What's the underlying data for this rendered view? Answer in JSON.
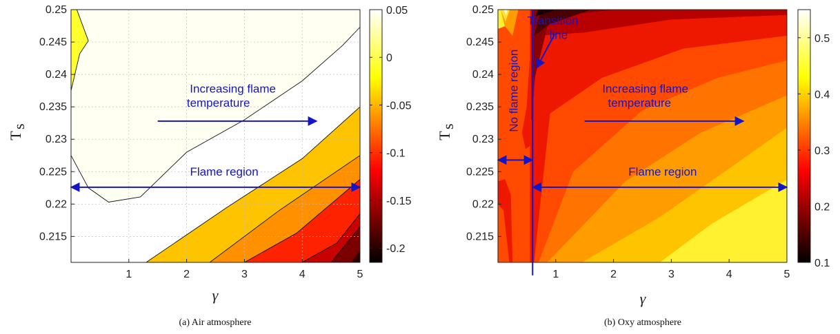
{
  "chart_data": [
    {
      "type": "heatmap",
      "subtype": "filled-contour",
      "caption": "(a) Air atmosphere",
      "xlabel": "γ",
      "ylabel": "T",
      "ylabel_sub": "s",
      "xlim": [
        0,
        5
      ],
      "ylim": [
        0.211,
        0.25
      ],
      "xticks": [
        1,
        2,
        3,
        4,
        5
      ],
      "yticks": [
        0.215,
        0.22,
        0.225,
        0.23,
        0.235,
        0.24,
        0.245,
        0.25
      ],
      "ytick_labels": [
        "0.215",
        "0.22",
        "0.225",
        "0.23",
        "0.235",
        "0.24",
        "0.245",
        "0.25"
      ],
      "grid": true,
      "colorbar": {
        "range": [
          -0.215,
          0.05
        ],
        "ticks": [
          0.05,
          0,
          -0.05,
          -0.1,
          -0.15,
          -0.2
        ],
        "tick_labels": [
          "0.05",
          "0",
          "-0.05",
          "-0.1",
          "-0.15",
          "-0.2"
        ],
        "colormap": "hot"
      },
      "contour_levels": [
        0.0,
        -0.03,
        -0.07,
        -0.11,
        -0.15,
        -0.19
      ],
      "fills": [
        {
          "level": 0.03,
          "color": "#fffff2",
          "polygon": [
            [
              0,
              0.25
            ],
            [
              0.1,
              0.25
            ],
            [
              0.3,
              0.25
            ],
            [
              5,
              0.25
            ],
            [
              5,
              0.2473
            ],
            [
              4.7,
              0.2445
            ],
            [
              4.0,
              0.239
            ],
            [
              3.0,
              0.233
            ],
            [
              2.0,
              0.228
            ],
            [
              1.2,
              0.2211
            ],
            [
              0.65,
              0.2203
            ],
            [
              0.3,
              0.2225
            ],
            [
              0,
              0.2275
            ],
            [
              0,
              0.2375
            ],
            [
              0.15,
              0.2432
            ],
            [
              0.3,
              0.2452
            ],
            [
              0.1,
              0.25
            ]
          ]
        },
        {
          "level": 0.035,
          "color": "#ffff30",
          "polygon": [
            [
              0,
              0.2375
            ],
            [
              0,
              0.25
            ],
            [
              0.1,
              0.25
            ],
            [
              0.3,
              0.2452
            ],
            [
              0.15,
              0.2432
            ]
          ]
        },
        {
          "level": -0.09,
          "color": "#ff2200",
          "polygon": [
            [
              3.0,
              0.211
            ],
            [
              3.9,
              0.2155
            ],
            [
              5,
              0.2238
            ],
            [
              5,
              0.211
            ]
          ]
        },
        {
          "level": -0.05,
          "color": "#ff9000",
          "polygon": [
            [
              2.4,
              0.211
            ],
            [
              3.6,
              0.219
            ],
            [
              5,
              0.2275
            ],
            [
              5,
              0.2238
            ],
            [
              3.9,
              0.2155
            ],
            [
              3.0,
              0.211
            ]
          ]
        },
        {
          "level": -0.015,
          "color": "#ffc400",
          "polygon": [
            [
              1.3,
              0.211
            ],
            [
              2.7,
              0.2195
            ],
            [
              4.0,
              0.227
            ],
            [
              5,
              0.235
            ],
            [
              5,
              0.2275
            ],
            [
              3.6,
              0.219
            ],
            [
              2.4,
              0.211
            ]
          ]
        },
        {
          "level": -0.13,
          "color": "#c70000",
          "polygon": [
            [
              4.0,
              0.211
            ],
            [
              4.6,
              0.214
            ],
            [
              5,
              0.2185
            ],
            [
              5,
              0.211
            ]
          ]
        },
        {
          "level": -0.17,
          "color": "#7a0000",
          "polygon": [
            [
              4.5,
              0.211
            ],
            [
              5,
              0.2165
            ],
            [
              5,
              0.211
            ]
          ]
        },
        {
          "level": -0.21,
          "color": "#2a0000",
          "polygon": [
            [
              4.85,
              0.211
            ],
            [
              5,
              0.2128
            ],
            [
              5,
              0.211
            ]
          ]
        }
      ],
      "contour_lines": [
        [
          [
            0,
            0.2375
          ],
          [
            0.15,
            0.2432
          ],
          [
            0.3,
            0.2452
          ],
          [
            0.1,
            0.25
          ]
        ],
        [
          [
            0,
            0.2275
          ],
          [
            0.3,
            0.2225
          ],
          [
            0.65,
            0.2203
          ],
          [
            1.2,
            0.2211
          ],
          [
            2.0,
            0.228
          ],
          [
            3.0,
            0.233
          ],
          [
            4.0,
            0.239
          ],
          [
            4.7,
            0.2445
          ],
          [
            5,
            0.2473
          ]
        ],
        [
          [
            1.3,
            0.211
          ],
          [
            2.7,
            0.2195
          ],
          [
            4.0,
            0.227
          ],
          [
            5,
            0.235
          ]
        ],
        [
          [
            2.4,
            0.211
          ],
          [
            3.6,
            0.219
          ],
          [
            5,
            0.2275
          ]
        ],
        [
          [
            3.0,
            0.211
          ],
          [
            3.9,
            0.2155
          ],
          [
            5,
            0.2238
          ]
        ],
        [
          [
            4.0,
            0.211
          ],
          [
            4.6,
            0.214
          ],
          [
            5,
            0.2185
          ]
        ],
        [
          [
            4.5,
            0.211
          ],
          [
            5,
            0.2165
          ]
        ]
      ],
      "annotations": [
        {
          "text": "Increasing flame",
          "x": 2.8,
          "y": 0.2372
        },
        {
          "text": "temperature",
          "x": 2.55,
          "y": 0.235
        },
        {
          "text": "Flame region",
          "x": 2.65,
          "y": 0.2244
        }
      ],
      "arrows": [
        {
          "kind": "single",
          "from": [
            1.5,
            0.2328
          ],
          "to": [
            4.25,
            0.2328
          ]
        },
        {
          "kind": "double",
          "from": [
            0,
            0.2226
          ],
          "to": [
            5,
            0.2226
          ]
        }
      ]
    },
    {
      "type": "heatmap",
      "subtype": "filled-contour",
      "caption": "(b) Oxy atmosphere",
      "xlabel": "γ",
      "ylabel": "T",
      "ylabel_sub": "s",
      "xlim": [
        0,
        5
      ],
      "ylim": [
        0.211,
        0.25
      ],
      "xticks": [
        1,
        2,
        3,
        4,
        5
      ],
      "yticks": [
        0.215,
        0.22,
        0.225,
        0.23,
        0.235,
        0.24,
        0.245,
        0.25
      ],
      "ytick_labels": [
        "0.215",
        "0.22",
        "0.225",
        "0.23",
        "0.235",
        "0.24",
        "0.245",
        "0.25"
      ],
      "grid": false,
      "colorbar": {
        "range": [
          0.1,
          0.55
        ],
        "ticks": [
          0.5,
          0.4,
          0.3,
          0.2,
          0.1
        ],
        "tick_labels": [
          "0.5",
          "0.4",
          "0.3",
          "0.2",
          "0.1"
        ],
        "colormap": "hot"
      },
      "fills": [
        {
          "level": 0.48,
          "color": "#fff030",
          "polygon": [
            [
              0,
              0.211
            ],
            [
              5,
              0.211
            ],
            [
              5,
              0.25
            ],
            [
              0,
              0.25
            ]
          ]
        },
        {
          "level": 0.42,
          "color": "#ffc400",
          "polygon": [
            [
              0.55,
              0.211
            ],
            [
              2.8,
              0.211
            ],
            [
              3.7,
              0.217
            ],
            [
              5,
              0.2238
            ],
            [
              5,
              0.25
            ],
            [
              0.55,
              0.25
            ]
          ]
        },
        {
          "level": 0.38,
          "color": "#ff9d00",
          "polygon": [
            [
              0.55,
              0.211
            ],
            [
              1.45,
              0.211
            ],
            [
              2.8,
              0.218
            ],
            [
              4.0,
              0.2255
            ],
            [
              5,
              0.2318
            ],
            [
              5,
              0.25
            ],
            [
              0.55,
              0.25
            ]
          ]
        },
        {
          "level": 0.34,
          "color": "#ff7300",
          "polygon": [
            [
              0.55,
              0.211
            ],
            [
              0.85,
              0.211
            ],
            [
              2.2,
              0.2235
            ],
            [
              3.5,
              0.231
            ],
            [
              5,
              0.2368
            ],
            [
              5,
              0.25
            ],
            [
              0.55,
              0.25
            ]
          ]
        },
        {
          "level": 0.3,
          "color": "#ff4a00",
          "polygon": [
            [
              0.55,
              0.211
            ],
            [
              0.7,
              0.211
            ],
            [
              1.3,
              0.225
            ],
            [
              2.5,
              0.2345
            ],
            [
              3.8,
              0.2395
            ],
            [
              5,
              0.2422
            ],
            [
              5,
              0.25
            ],
            [
              0.55,
              0.25
            ]
          ]
        },
        {
          "level": 0.26,
          "color": "#ee1800",
          "polygon": [
            [
              0.55,
              0.211
            ],
            [
              0.62,
              0.211
            ],
            [
              0.9,
              0.234
            ],
            [
              1.8,
              0.2395
            ],
            [
              3.2,
              0.244
            ],
            [
              5,
              0.246
            ],
            [
              5,
              0.25
            ],
            [
              0.55,
              0.25
            ]
          ]
        },
        {
          "level": 0.22,
          "color": "#b80000",
          "polygon": [
            [
              0.58,
              0.233
            ],
            [
              0.7,
              0.246
            ],
            [
              1.5,
              0.2465
            ],
            [
              3.0,
              0.2485
            ],
            [
              5,
              0.2492
            ],
            [
              5,
              0.25
            ],
            [
              0.58,
              0.25
            ]
          ]
        },
        {
          "level": 0.18,
          "color": "#880000",
          "polygon": [
            [
              0.62,
              0.239
            ],
            [
              0.9,
              0.249
            ],
            [
              2.0,
              0.25
            ],
            [
              0.62,
              0.25
            ]
          ]
        },
        {
          "level": 0.14,
          "color": "#4a0000",
          "polygon": [
            [
              0.63,
              0.246
            ],
            [
              0.75,
              0.25
            ],
            [
              1.6,
              0.25
            ],
            [
              0.9,
              0.2478
            ]
          ]
        },
        {
          "level": 0.11,
          "color": "#160000",
          "polygon": [
            [
              0.65,
              0.249
            ],
            [
              0.7,
              0.25
            ],
            [
              1.0,
              0.25
            ]
          ]
        },
        {
          "level": 0.3,
          "color": "#ff4a00",
          "polygon": [
            [
              0,
              0.211
            ],
            [
              0.55,
              0.211
            ],
            [
              0.55,
              0.25
            ],
            [
              0.2,
              0.25
            ],
            [
              0.15,
              0.2475
            ],
            [
              0,
              0.247
            ]
          ]
        },
        {
          "level": 0.26,
          "color": "#ee1800",
          "polygon": [
            [
              0,
              0.2235
            ],
            [
              0.12,
              0.2238
            ],
            [
              0.22,
              0.2215
            ],
            [
              0.25,
              0.211
            ],
            [
              0.2,
              0.211
            ],
            [
              0.1,
              0.219
            ],
            [
              0,
              0.22
            ]
          ]
        },
        {
          "level": 0.28,
          "color": "#ee1800",
          "polygon": [
            [
              0.42,
              0.231
            ],
            [
              0.5,
              0.235
            ],
            [
              0.55,
              0.242
            ],
            [
              0.55,
              0.229
            ],
            [
              0.48,
              0.2285
            ]
          ]
        },
        {
          "level": 0.36,
          "color": "#ff9d00",
          "polygon": [
            [
              0.05,
              0.25
            ],
            [
              0.12,
              0.2475
            ],
            [
              0.25,
              0.246
            ],
            [
              0.35,
              0.25
            ]
          ]
        },
        {
          "level": 0.45,
          "color": "#ffe040",
          "polygon": [
            [
              0.05,
              0.25
            ],
            [
              0.13,
              0.2482
            ],
            [
              0.2,
              0.25
            ]
          ]
        },
        {
          "level": 0.52,
          "color": "#ffffc0",
          "polygon": [
            [
              0.1,
              0.25
            ],
            [
              0.14,
              0.2492
            ],
            [
              0.16,
              0.25
            ]
          ]
        }
      ],
      "annotations": [
        {
          "text": "Transition",
          "x": 0.95,
          "y": 0.2477
        },
        {
          "text": "line",
          "x": 1.05,
          "y": 0.2455
        },
        {
          "text": "No flame region",
          "x": 0.34,
          "y": 0.2375,
          "rotate": -90
        },
        {
          "text": "Increasing flame",
          "x": 2.55,
          "y": 0.2372
        },
        {
          "text": "temperature",
          "x": 2.45,
          "y": 0.235
        },
        {
          "text": "Flame region",
          "x": 2.85,
          "y": 0.2244
        }
      ],
      "vline": {
        "x": 0.6,
        "y": [
          0.209,
          0.25
        ]
      },
      "arrows": [
        {
          "kind": "single",
          "from": [
            1.5,
            0.2328
          ],
          "to": [
            4.25,
            0.2328
          ]
        },
        {
          "kind": "double",
          "from": [
            0.6,
            0.2226
          ],
          "to": [
            5,
            0.2226
          ]
        },
        {
          "kind": "double",
          "from": [
            0,
            0.2268
          ],
          "to": [
            0.6,
            0.2268
          ]
        },
        {
          "kind": "single",
          "from": [
            0.98,
            0.2462
          ],
          "to": [
            0.67,
            0.241
          ]
        }
      ]
    }
  ]
}
